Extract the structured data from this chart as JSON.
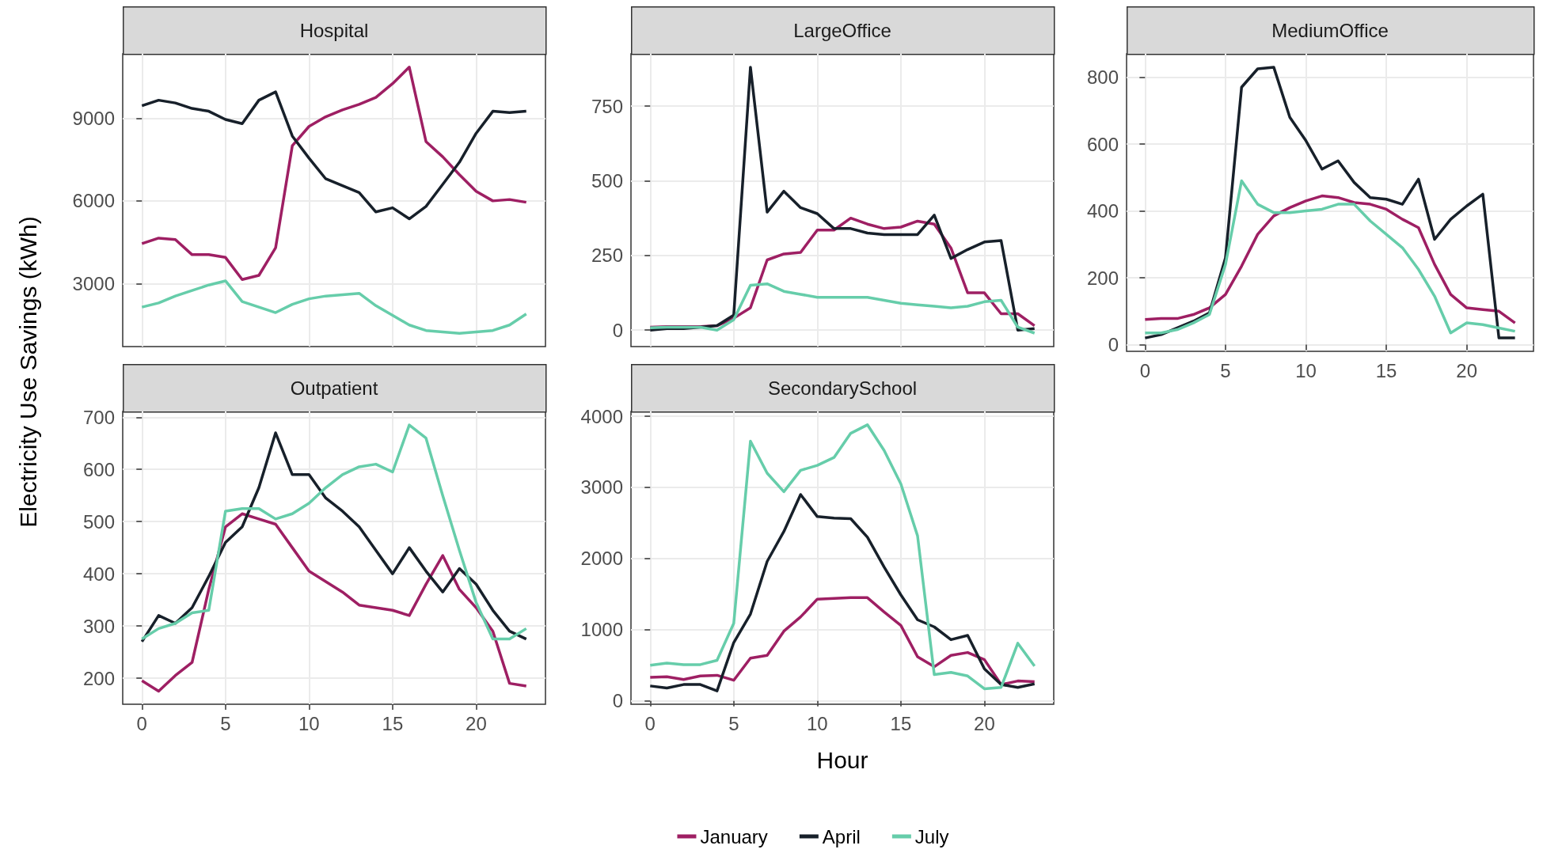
{
  "chart_data": [
    {
      "type": "line",
      "title": "Hospital",
      "ylabel": "Electricity Use Savings (kWh)",
      "x": [
        0,
        1,
        2,
        3,
        4,
        5,
        6,
        7,
        8,
        9,
        10,
        11,
        12,
        13,
        14,
        15,
        16,
        17,
        18,
        19,
        20,
        21,
        22,
        23
      ],
      "xlim": [
        -1.15,
        24.15
      ],
      "xticks": [
        0,
        5,
        10,
        15,
        20
      ],
      "ylim": [
        718,
        11332
      ],
      "yticks": [
        3000,
        6000,
        9000
      ],
      "grid": true,
      "tick_labels": "y",
      "series": [
        {
          "color": "#9e1f63",
          "values": [
            4450,
            4650,
            4600,
            4050,
            4050,
            3950,
            3150,
            3300,
            4300,
            8000,
            8700,
            9050,
            9300,
            9500,
            9750,
            10250,
            10850,
            8150,
            7600,
            6950,
            6350,
            6000,
            6050,
            5950
          ]
        },
        {
          "color": "#17202a",
          "values": [
            9450,
            9650,
            9550,
            9350,
            9250,
            8950,
            8800,
            9650,
            9950,
            8350,
            7550,
            6800,
            6550,
            6300,
            5600,
            5750,
            5350,
            5800,
            6600,
            7400,
            8450,
            9250,
            9200,
            9250
          ]
        },
        {
          "color": "#66cdaa",
          "values": [
            2150,
            2300,
            2550,
            2750,
            2950,
            3100,
            2350,
            2150,
            1950,
            2250,
            2450,
            2550,
            2600,
            2650,
            2200,
            1850,
            1500,
            1300,
            1250,
            1200,
            1250,
            1300,
            1500,
            1900
          ]
        }
      ]
    },
    {
      "type": "line",
      "title": "LargeOffice",
      "x": [
        0,
        1,
        2,
        3,
        4,
        5,
        6,
        7,
        8,
        9,
        10,
        11,
        12,
        13,
        14,
        15,
        16,
        17,
        18,
        19,
        20,
        21,
        22,
        23
      ],
      "xlim": [
        -1.15,
        24.15
      ],
      "xticks": [
        0,
        5,
        10,
        15,
        20
      ],
      "ylim": [
        -55,
        925
      ],
      "yticks": [
        0,
        250,
        500,
        750
      ],
      "grid": true,
      "tick_labels": "y",
      "series": [
        {
          "color": "#9e1f63",
          "values": [
            10,
            12,
            12,
            12,
            15,
            40,
            75,
            235,
            255,
            260,
            335,
            335,
            375,
            355,
            340,
            345,
            365,
            355,
            275,
            125,
            125,
            55,
            55,
            15
          ]
        },
        {
          "color": "#17202a",
          "values": [
            0,
            5,
            5,
            10,
            15,
            50,
            880,
            395,
            465,
            410,
            390,
            340,
            340,
            325,
            320,
            320,
            320,
            385,
            240,
            270,
            295,
            300,
            0,
            5
          ]
        },
        {
          "color": "#66cdaa",
          "values": [
            8,
            10,
            10,
            10,
            0,
            35,
            150,
            155,
            130,
            120,
            110,
            110,
            110,
            110,
            100,
            90,
            85,
            80,
            75,
            80,
            95,
            100,
            10,
            -10
          ]
        }
      ]
    },
    {
      "type": "line",
      "title": "MediumOffice",
      "x": [
        0,
        1,
        2,
        3,
        4,
        5,
        6,
        7,
        8,
        9,
        10,
        11,
        12,
        13,
        14,
        15,
        16,
        17,
        18,
        19,
        20,
        21,
        22,
        23
      ],
      "xlim": [
        -1.15,
        24.15
      ],
      "xticks": [
        0,
        5,
        10,
        15,
        20
      ],
      "ylim": [
        -20,
        870
      ],
      "yticks": [
        0,
        200,
        400,
        600,
        800
      ],
      "grid": true,
      "series": [
        {
          "color": "#9e1f63",
          "values": [
            75,
            78,
            78,
            90,
            110,
            150,
            235,
            330,
            385,
            410,
            430,
            445,
            440,
            425,
            420,
            405,
            375,
            350,
            240,
            150,
            110,
            105,
            100,
            65
          ]
        },
        {
          "color": "#17202a",
          "values": [
            20,
            30,
            50,
            70,
            95,
            260,
            770,
            825,
            830,
            680,
            610,
            525,
            550,
            485,
            440,
            435,
            420,
            495,
            315,
            375,
            415,
            450,
            20,
            20
          ]
        },
        {
          "color": "#66cdaa",
          "values": [
            35,
            35,
            45,
            65,
            90,
            240,
            490,
            420,
            395,
            395,
            400,
            405,
            420,
            420,
            370,
            330,
            290,
            225,
            145,
            35,
            65,
            60,
            50,
            40
          ]
        }
      ]
    },
    {
      "type": "line",
      "title": "Outpatient",
      "x": [
        0,
        1,
        2,
        3,
        4,
        5,
        6,
        7,
        8,
        9,
        10,
        11,
        12,
        13,
        14,
        15,
        16,
        17,
        18,
        19,
        20,
        21,
        22,
        23
      ],
      "xlim": [
        -1.15,
        24.15
      ],
      "xticks": [
        0,
        5,
        10,
        15,
        20
      ],
      "ylim": [
        150,
        711
      ],
      "yticks": [
        200,
        300,
        400,
        500,
        600,
        700
      ],
      "grid": true,
      "series": [
        {
          "color": "#9e1f63",
          "values": [
            195,
            175,
            205,
            230,
            370,
            490,
            515,
            505,
            495,
            450,
            405,
            385,
            365,
            340,
            335,
            330,
            320,
            380,
            435,
            370,
            335,
            290,
            190,
            185
          ]
        },
        {
          "color": "#17202a",
          "values": [
            270,
            320,
            305,
            335,
            395,
            460,
            490,
            565,
            670,
            590,
            590,
            545,
            520,
            490,
            445,
            400,
            450,
            405,
            365,
            410,
            380,
            330,
            290,
            275
          ]
        },
        {
          "color": "#66cdaa",
          "values": [
            275,
            295,
            305,
            325,
            330,
            520,
            525,
            525,
            505,
            515,
            535,
            565,
            590,
            605,
            610,
            595,
            685,
            660,
            550,
            445,
            345,
            275,
            275,
            295
          ]
        }
      ]
    },
    {
      "type": "line",
      "title": "SecondarySchool",
      "xlabel": "Hour",
      "legend": "bottom",
      "x": [
        0,
        1,
        2,
        3,
        4,
        5,
        6,
        7,
        8,
        9,
        10,
        11,
        12,
        13,
        14,
        15,
        16,
        17,
        18,
        19,
        20,
        21,
        22,
        23
      ],
      "xlim": [
        -1.15,
        24.15
      ],
      "xticks": [
        0,
        5,
        10,
        15,
        20
      ],
      "ylim": [
        -47,
        4067
      ],
      "yticks": [
        0,
        1000,
        2000,
        3000,
        4000
      ],
      "grid": true,
      "series": [
        {
          "name": "January",
          "color": "#9e1f63",
          "values": [
            330,
            340,
            300,
            350,
            360,
            290,
            600,
            640,
            980,
            1180,
            1430,
            1440,
            1450,
            1450,
            1250,
            1060,
            620,
            480,
            640,
            680,
            580,
            230,
            280,
            270
          ]
        },
        {
          "name": "April",
          "color": "#17202a",
          "values": [
            210,
            180,
            230,
            230,
            140,
            820,
            1220,
            1960,
            2380,
            2900,
            2590,
            2570,
            2560,
            2300,
            1880,
            1490,
            1140,
            1040,
            860,
            920,
            450,
            230,
            190,
            240
          ]
        },
        {
          "name": "July",
          "color": "#66cdaa",
          "values": [
            500,
            530,
            510,
            510,
            570,
            1090,
            3650,
            3200,
            2940,
            3240,
            3310,
            3420,
            3760,
            3880,
            3520,
            3050,
            2320,
            370,
            400,
            350,
            170,
            190,
            810,
            490
          ]
        }
      ]
    }
  ]
}
